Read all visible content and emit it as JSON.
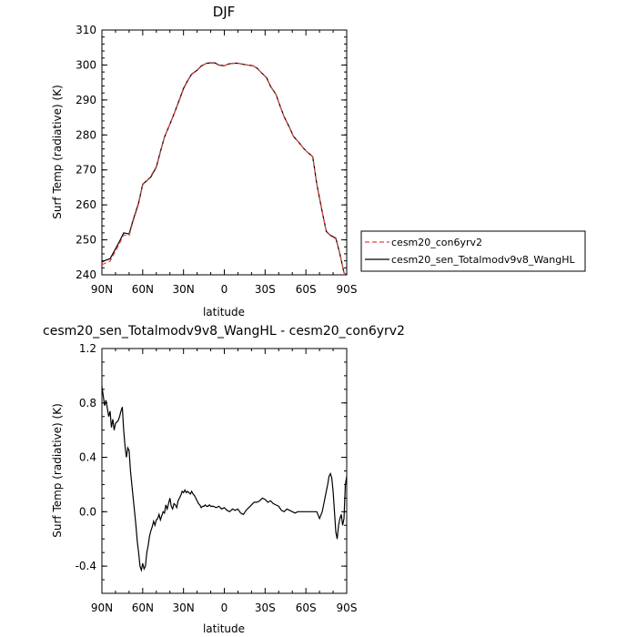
{
  "chart_data": [
    {
      "type": "line",
      "title": "DJF",
      "xlabel": "latitude",
      "ylabel": "Surf Temp (radiative) (K)",
      "xlim": [
        90,
        -90
      ],
      "ylim": [
        240,
        310
      ],
      "xticks": [
        90,
        60,
        30,
        0,
        -30,
        -60,
        -90
      ],
      "xtick_labels": [
        "90N",
        "60N",
        "30N",
        "0",
        "30S",
        "60S",
        "90S"
      ],
      "yticks": [
        240,
        250,
        260,
        270,
        280,
        290,
        300,
        310
      ],
      "ytick_labels": [
        "240",
        "250",
        "260",
        "270",
        "280",
        "290",
        "300",
        "310"
      ],
      "legend": "right",
      "series": [
        {
          "name": "cesm20_con6yrv2",
          "color": "#e8443a",
          "dash": "dashed",
          "x": [
            90,
            87,
            84,
            80,
            77,
            74,
            70,
            67,
            63,
            60,
            57,
            54,
            50,
            47,
            44,
            40,
            37,
            33,
            30,
            27,
            24,
            20,
            17,
            13,
            10,
            7,
            4,
            0,
            -3,
            -7,
            -10,
            -14,
            -17,
            -21,
            -24,
            -27,
            -31,
            -34,
            -38,
            -41,
            -44,
            -48,
            -51,
            -55,
            -58,
            -61,
            -65,
            -68,
            -72,
            -75,
            -78,
            -82,
            -85,
            -88,
            -90
          ],
          "values": [
            242.9,
            243.4,
            243.9,
            246.8,
            249.0,
            251.4,
            251.2,
            255.3,
            260.3,
            265.7,
            266.9,
            268.3,
            271.0,
            275.4,
            279.5,
            283.1,
            285.9,
            289.9,
            293.1,
            295.4,
            297.3,
            298.4,
            299.6,
            300.5,
            300.5,
            300.5,
            299.9,
            299.8,
            300.3,
            300.5,
            300.5,
            300.2,
            300.0,
            299.8,
            299.1,
            297.9,
            296.3,
            293.8,
            291.5,
            288.2,
            285.1,
            282.0,
            279.4,
            277.8,
            276.3,
            275.1,
            273.8,
            266.0,
            258.0,
            252.3,
            251.2,
            250.3,
            246.0,
            240.6,
            240.0
          ]
        },
        {
          "name": "cesm20_sen_Totalmodv9v8_WangHL",
          "color": "#000000",
          "dash": "solid",
          "x": [
            90,
            87,
            84,
            80,
            77,
            74,
            70,
            67,
            63,
            60,
            57,
            54,
            50,
            47,
            44,
            40,
            37,
            33,
            30,
            27,
            24,
            20,
            17,
            13,
            10,
            7,
            4,
            0,
            -3,
            -7,
            -10,
            -14,
            -17,
            -21,
            -24,
            -27,
            -31,
            -34,
            -38,
            -41,
            -44,
            -48,
            -51,
            -55,
            -58,
            -61,
            -65,
            -68,
            -72,
            -75,
            -78,
            -82,
            -85,
            -88,
            -90
          ],
          "values": [
            243.7,
            244.2,
            244.6,
            247.4,
            249.6,
            252.0,
            251.7,
            255.7,
            260.6,
            265.9,
            266.9,
            268.0,
            270.8,
            275.2,
            279.4,
            283.1,
            286.0,
            290.1,
            293.3,
            295.5,
            297.4,
            298.5,
            299.7,
            300.5,
            300.6,
            300.6,
            300.0,
            299.8,
            300.3,
            300.5,
            300.5,
            300.2,
            300.0,
            299.8,
            299.1,
            297.9,
            296.4,
            293.9,
            291.6,
            288.3,
            285.2,
            282.1,
            279.5,
            277.8,
            276.3,
            275.1,
            273.8,
            266.0,
            258.0,
            252.4,
            251.3,
            250.5,
            246.0,
            240.6,
            240.0
          ]
        }
      ]
    },
    {
      "type": "line",
      "title": "cesm20_sen_Totalmodv9v8_WangHL - cesm20_con6yrv2",
      "xlabel": "latitude",
      "ylabel": "Surf Temp (radiative) (K)",
      "xlim": [
        90,
        -90
      ],
      "ylim": [
        -0.6,
        1.2
      ],
      "xticks": [
        90,
        60,
        30,
        0,
        -30,
        -60,
        -90
      ],
      "xtick_labels": [
        "90N",
        "60N",
        "30N",
        "0",
        "30S",
        "60S",
        "90S"
      ],
      "yticks": [
        -0.4,
        0.0,
        0.4,
        0.8,
        1.2
      ],
      "ytick_labels": [
        "-0.4",
        "0.0",
        "0.4",
        "0.8",
        "1.2"
      ],
      "series": [
        {
          "color": "#000000",
          "dash": "solid",
          "x": [
            90,
            89,
            88,
            87,
            86,
            85,
            84,
            83,
            82,
            81,
            80,
            79,
            78,
            77,
            76,
            75,
            74,
            73,
            72,
            71,
            70,
            69,
            68,
            67,
            66,
            65,
            64,
            63,
            62,
            61,
            60,
            59,
            58,
            57,
            56,
            55,
            54,
            53,
            52,
            51,
            50,
            49,
            48,
            47,
            46,
            45,
            44,
            43,
            42,
            41,
            40,
            39,
            38,
            37,
            36,
            35,
            34,
            33,
            32,
            31,
            30,
            29,
            28,
            27,
            26,
            25,
            24,
            23,
            22,
            21,
            20,
            19,
            18,
            17,
            16,
            15,
            14,
            13,
            12,
            11,
            10,
            8,
            6,
            4,
            2,
            0,
            -2,
            -4,
            -6,
            -8,
            -10,
            -12,
            -14,
            -16,
            -18,
            -20,
            -22,
            -24,
            -26,
            -28,
            -30,
            -32,
            -34,
            -36,
            -38,
            -40,
            -42,
            -44,
            -46,
            -48,
            -50,
            -52,
            -54,
            -56,
            -58,
            -60,
            -62,
            -64,
            -66,
            -68,
            -70,
            -72,
            -74,
            -76,
            -77,
            -78,
            -79,
            -80,
            -81,
            -82,
            -83,
            -84,
            -85,
            -86,
            -87,
            -88,
            -89,
            -90
          ],
          "values": [
            0.92,
            0.85,
            0.78,
            0.82,
            0.76,
            0.7,
            0.74,
            0.62,
            0.68,
            0.6,
            0.65,
            0.66,
            0.67,
            0.7,
            0.74,
            0.77,
            0.6,
            0.48,
            0.4,
            0.47,
            0.45,
            0.3,
            0.2,
            0.1,
            0.0,
            -0.1,
            -0.22,
            -0.3,
            -0.4,
            -0.43,
            -0.38,
            -0.42,
            -0.4,
            -0.3,
            -0.25,
            -0.18,
            -0.14,
            -0.11,
            -0.07,
            -0.1,
            -0.06,
            -0.05,
            -0.02,
            -0.06,
            -0.03,
            0.0,
            -0.01,
            0.05,
            0.02,
            0.06,
            0.1,
            0.04,
            0.02,
            0.06,
            0.05,
            0.03,
            0.08,
            0.1,
            0.12,
            0.15,
            0.14,
            0.16,
            0.14,
            0.15,
            0.14,
            0.13,
            0.15,
            0.13,
            0.12,
            0.1,
            0.08,
            0.06,
            0.05,
            0.03,
            0.04,
            0.04,
            0.05,
            0.04,
            0.04,
            0.05,
            0.04,
            0.04,
            0.03,
            0.04,
            0.02,
            0.03,
            0.01,
            0.0,
            0.02,
            0.01,
            0.02,
            -0.01,
            -0.02,
            0.01,
            0.03,
            0.05,
            0.07,
            0.07,
            0.08,
            0.1,
            0.09,
            0.07,
            0.08,
            0.06,
            0.05,
            0.04,
            0.01,
            0.0,
            0.02,
            0.01,
            0.0,
            -0.01,
            0.0,
            0.0,
            0.0,
            0.0,
            0.0,
            0.0,
            0.0,
            0.0,
            -0.05,
            0.0,
            0.1,
            0.2,
            0.26,
            0.28,
            0.25,
            0.15,
            0.0,
            -0.15,
            -0.2,
            -0.1,
            -0.05,
            -0.02,
            -0.1,
            -0.05,
            0.2,
            0.26
          ]
        }
      ]
    }
  ]
}
